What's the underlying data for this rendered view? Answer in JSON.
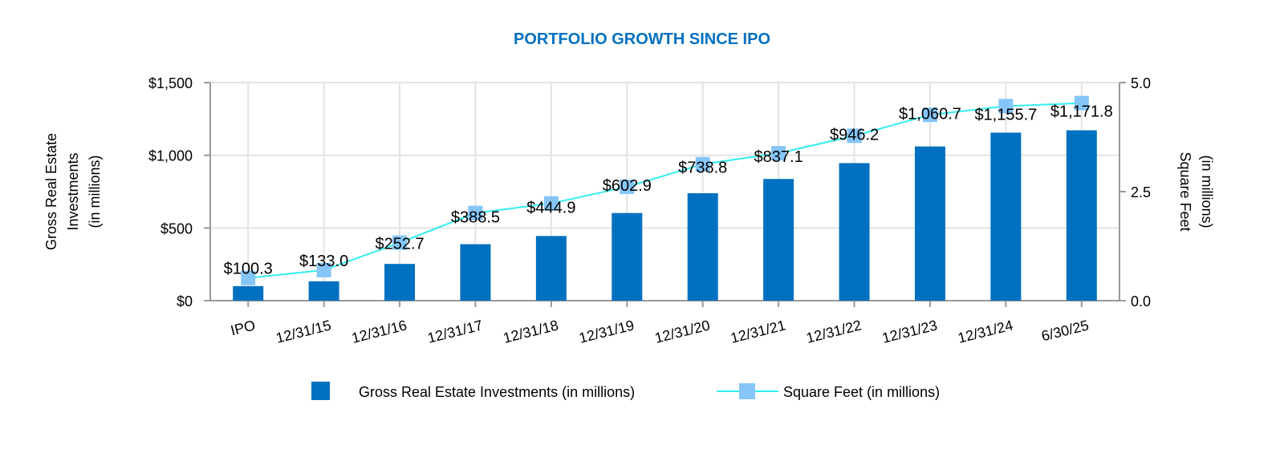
{
  "chart_data": {
    "type": "bar",
    "title": "PORTFOLIO GROWTH SINCE IPO",
    "categories": [
      "IPO",
      "12/31/15",
      "12/31/16",
      "12/31/17",
      "12/31/18",
      "12/31/19",
      "12/31/20",
      "12/31/21",
      "12/31/22",
      "12/31/23",
      "12/31/24",
      "6/30/25"
    ],
    "series": [
      {
        "name": "Gross Real Estate Investments (in millions)",
        "type": "bar",
        "axis": "left",
        "color": "#0070C0",
        "values": [
          100.3,
          133.0,
          252.7,
          388.5,
          444.9,
          602.9,
          738.8,
          837.1,
          946.2,
          1060.7,
          1155.7,
          1171.8
        ],
        "labels": [
          "$100.3",
          "$133.0",
          "$252.7",
          "$388.5",
          "$444.9",
          "$602.9",
          "$738.8",
          "$837.1",
          "$946.2",
          "$1,060.7",
          "$1,155.7",
          "$1,171.8"
        ]
      },
      {
        "name": "Square Feet (in millions)",
        "type": "line",
        "axis": "right",
        "color": "#33EEEE",
        "marker_color": "#85C5F8",
        "values": [
          0.52,
          0.7,
          1.33,
          2.01,
          2.23,
          2.61,
          3.13,
          3.38,
          3.78,
          4.26,
          4.46,
          4.53
        ]
      }
    ],
    "ylabel": "Gross Real Estate Investments (in millions)",
    "ylabel_lines": [
      "Gross Real Estate",
      "Investments",
      "(in millions)"
    ],
    "y2label_lines": [
      "Square Feet",
      "(in millions)"
    ],
    "ylim": [
      0,
      1500
    ],
    "y2lim": [
      0,
      5.0
    ],
    "yticks": [
      0,
      500,
      1000,
      1500
    ],
    "ytick_labels": [
      "$0",
      "$500",
      "$1,000",
      "$1,500"
    ],
    "y2ticks": [
      0,
      2.5,
      5.0
    ],
    "y2tick_labels": [
      "0.0",
      "2.5",
      "5.0"
    ],
    "grid": true,
    "legend": "bottom",
    "title_color": "#0070C0"
  }
}
